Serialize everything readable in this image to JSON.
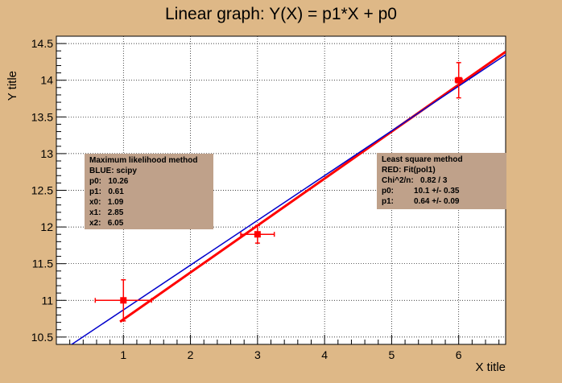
{
  "colors": {
    "background": "#deb887",
    "plot_area": "#ffffff",
    "red_series": "#ff0000",
    "blue_series": "#0000cc",
    "stats_box": "#bfa18a"
  },
  "left_box": {
    "lines": [
      "Maximum likelihood method",
      "BLUE: scipy",
      "p0:   10.26",
      "p1:   0.61",
      "x0:   1.09",
      "x1:   2.85",
      "x2:   6.05"
    ]
  },
  "right_box": {
    "lines": [
      "Least square method",
      "RED: Fit(pol1)",
      "Chi^2/n:   0.82 / 3",
      "p0:         10.1 +/- 0.35",
      "p1:         0.64 +/- 0.09"
    ]
  },
  "chart_data": {
    "type": "scatter",
    "title": "Linear graph: Y(X) = p1*X + p0",
    "xlabel": "X title",
    "ylabel": "Y title",
    "xlim": [
      0,
      6.7
    ],
    "ylim": [
      10.4,
      14.6
    ],
    "grid": true,
    "x_ticks": [
      1,
      2,
      3,
      4,
      5,
      6
    ],
    "x_tick_labels": [
      "1",
      "2",
      "3",
      "4",
      "5",
      "6"
    ],
    "y_ticks": [
      10.5,
      11,
      11.5,
      12,
      12.5,
      13,
      13.5,
      14,
      14.5
    ],
    "y_tick_labels": [
      "10.5",
      "11",
      "11.5",
      "12",
      "12.5",
      "13",
      "13.5",
      "14",
      "14.5"
    ],
    "points": [
      {
        "x": 1,
        "y": 11.0,
        "ex": 0.42,
        "ey": 0.28
      },
      {
        "x": 3,
        "y": 11.9,
        "ex": 0.25,
        "ey": 0.12
      },
      {
        "x": 6,
        "y": 14.0,
        "ex": 0.05,
        "ey": 0.24
      }
    ],
    "lines": [
      {
        "p0": 10.1,
        "p1": 0.64,
        "x": [
          0.95,
          6.7
        ],
        "color": "#ff0000",
        "width": 3
      },
      {
        "p0": 10.26,
        "p1": 0.61,
        "x": [
          0.18,
          6.7
        ],
        "color": "#0000cc",
        "width": 1.5
      }
    ]
  }
}
